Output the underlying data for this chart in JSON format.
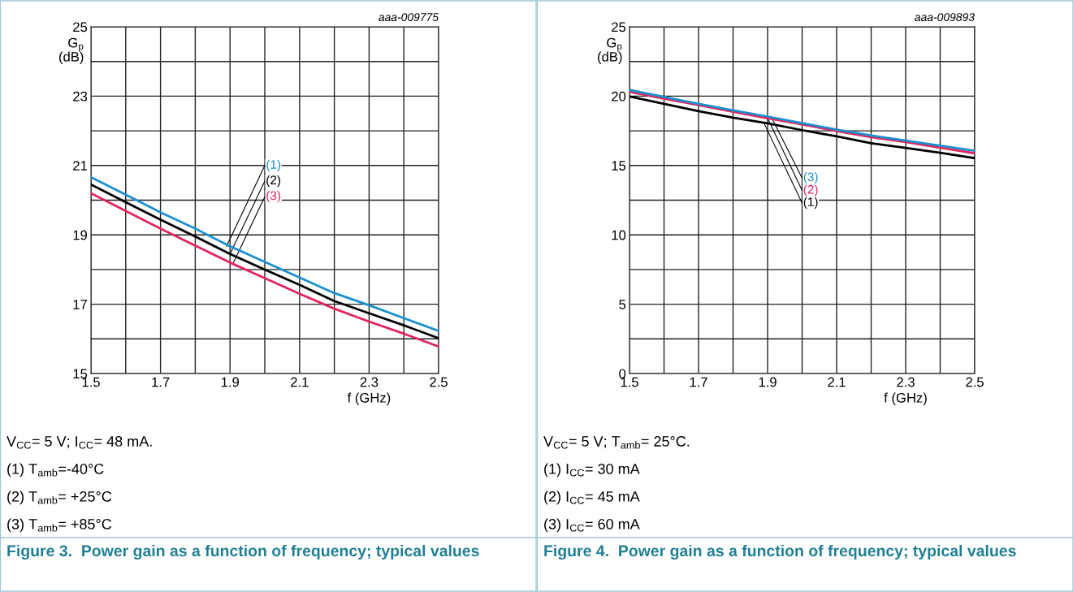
{
  "chart_data": [
    {
      "type": "line",
      "title": "Figure 3.  Power gain as a function of frequency; typical values",
      "xlabel": "f (GHz)",
      "ylabel": "G$_{p}$\n(dB)",
      "x": [
        1.5,
        1.6,
        1.7,
        1.8,
        1.9,
        2.0,
        2.1,
        2.2,
        2.3,
        2.4,
        2.5
      ],
      "series": [
        {
          "name": "(1)",
          "color": "#1a8fd0",
          "values": [
            20.66,
            20.16,
            19.65,
            19.18,
            18.67,
            18.22,
            17.77,
            17.32,
            16.97,
            16.6,
            16.23
          ]
        },
        {
          "name": "(2)",
          "color": "#000000",
          "values": [
            20.45,
            19.94,
            19.44,
            18.95,
            18.45,
            18.0,
            17.56,
            17.09,
            16.74,
            16.39,
            16.02
          ]
        },
        {
          "name": "(3)",
          "color": "#e2245c",
          "values": [
            20.2,
            19.69,
            19.18,
            18.69,
            18.2,
            17.75,
            17.3,
            16.87,
            16.5,
            16.15,
            15.78
          ]
        }
      ],
      "xlim": [
        1.5,
        2.5
      ],
      "ylim": [
        15,
        25
      ],
      "xticks": [
        1.5,
        {
          "value": 1.6,
          "label": null
        },
        1.7,
        {
          "value": 1.8,
          "label": null
        },
        1.9,
        {
          "value": 2.0,
          "label": null
        },
        2.1,
        {
          "value": 2.2,
          "label": null
        },
        2.3,
        {
          "value": 2.4,
          "label": null
        },
        2.5
      ],
      "yticks": [
        15,
        {
          "value": 16,
          "label": null
        },
        17,
        {
          "value": 18,
          "label": null
        },
        19,
        {
          "value": 20,
          "label": null
        },
        21,
        {
          "value": 22,
          "label": null
        },
        23,
        {
          "value": 24,
          "label": null
        },
        25
      ],
      "grid": true,
      "annotations": [
        "aaa-009775",
        "V$_{CC}$= 5 V; I$_{CC}$= 48 mA.",
        "(1) T$_{amb}$=-40°C",
        "(2) T$_{amb}$= +25°C",
        "(3) T$_{amb}$= +85°C"
      ]
    },
    {
      "type": "line",
      "title": "Figure 4.  Power gain as a function of frequency; typical values",
      "xlabel": "f (GHz)",
      "ylabel": "G$_{p}$\n(dB)",
      "x": [
        1.5,
        1.6,
        1.7,
        1.8,
        1.9,
        2.0,
        2.1,
        2.2,
        2.3,
        2.4,
        2.5
      ],
      "series": [
        {
          "name": "(1)",
          "color": "#000000",
          "values": [
            19.98,
            19.45,
            18.92,
            18.45,
            18.04,
            17.55,
            17.1,
            16.61,
            16.27,
            15.92,
            15.53
          ]
        },
        {
          "name": "(2)",
          "color": "#e2245c",
          "values": [
            20.31,
            19.82,
            19.35,
            18.88,
            18.41,
            17.96,
            17.49,
            17.04,
            16.69,
            16.29,
            15.88
          ]
        },
        {
          "name": "(3)",
          "color": "#1a8fd0",
          "values": [
            20.45,
            19.94,
            19.45,
            18.98,
            18.53,
            18.06,
            17.59,
            17.16,
            16.8,
            16.43,
            16.06
          ]
        }
      ],
      "xlim": [
        1.5,
        2.5
      ],
      "ylim": [
        0,
        25
      ],
      "xticks": [
        1.5,
        {
          "value": 1.6,
          "label": null
        },
        1.7,
        {
          "value": 1.8,
          "label": null
        },
        1.9,
        {
          "value": 2.0,
          "label": null
        },
        2.1,
        {
          "value": 2.2,
          "label": null
        },
        2.3,
        {
          "value": 2.4,
          "label": null
        },
        2.5
      ],
      "yticks": [
        0,
        {
          "value": 2.5,
          "label": null
        },
        5,
        {
          "value": 7.5,
          "label": null
        },
        10,
        {
          "value": 12.5,
          "label": null
        },
        15,
        {
          "value": 17.5,
          "label": null
        },
        20,
        {
          "value": 22.5,
          "label": null
        },
        25
      ],
      "grid": true,
      "annotations": [
        "aaa-009893",
        "V$_{CC}$= 5 V; T$_{amb}$= 25°C.",
        "(1) I$_{CC}$= 30 mA",
        "(2) I$_{CC}$= 45 mA",
        "(3) I$_{CC}$= 60 mA"
      ]
    }
  ]
}
